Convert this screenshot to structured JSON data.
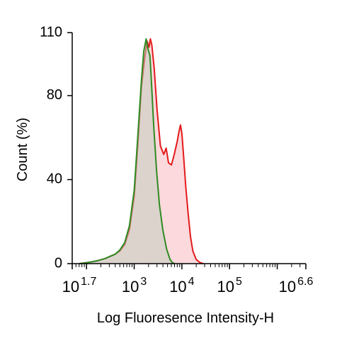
{
  "chart_data": {
    "type": "area",
    "title": "",
    "xlabel": "Log Fluoresence Intensity-H",
    "ylabel": "Count  (%)",
    "xscale": "log",
    "xlim": [
      1.7,
      6.6
    ],
    "ylim": [
      0,
      110
    ],
    "yticks": [
      "0",
      "40",
      "80",
      "110"
    ],
    "ytick_values": [
      0,
      40,
      80,
      110
    ],
    "xticks": [
      {
        "base": "10",
        "exp": "1.7",
        "log": 1.7
      },
      {
        "base": "10",
        "exp": "3",
        "log": 3
      },
      {
        "base": "10",
        "exp": "4",
        "log": 4
      },
      {
        "base": "10",
        "exp": "5",
        "log": 5
      },
      {
        "base": "10",
        "exp": "6.6",
        "log": 6.6
      }
    ],
    "grid": false,
    "legend": "none",
    "series": [
      {
        "color": "#e31a1c",
        "fill": "#fbd9dc",
        "x_log": [
          1.85,
          1.95,
          2.1,
          2.25,
          2.4,
          2.5,
          2.6,
          2.7,
          2.8,
          2.9,
          3.0,
          3.08,
          3.15,
          3.22,
          3.27,
          3.31,
          3.34,
          3.37,
          3.42,
          3.48,
          3.55,
          3.62,
          3.67,
          3.72,
          3.78,
          3.84,
          3.9,
          3.94,
          3.97,
          4.0,
          4.04,
          4.08,
          4.13,
          4.18,
          4.23,
          4.3,
          4.38,
          4.45
        ],
        "y": [
          0,
          0.3,
          0.8,
          1.5,
          2.5,
          3.5,
          4.5,
          6,
          9,
          16,
          32,
          58,
          84,
          98,
          106,
          103,
          107,
          104,
          93,
          73,
          56,
          52,
          55,
          48,
          47,
          52,
          58,
          63,
          66,
          62,
          50,
          37,
          24,
          13,
          6,
          2,
          0.5,
          0
        ]
      },
      {
        "color": "#2e8b22",
        "fill": "rgba(190,205,190,0.5)",
        "x_log": [
          1.85,
          1.95,
          2.1,
          2.25,
          2.4,
          2.5,
          2.6,
          2.7,
          2.8,
          2.9,
          3.0,
          3.08,
          3.15,
          3.2,
          3.25,
          3.29,
          3.33,
          3.36,
          3.41,
          3.47,
          3.53,
          3.6,
          3.68,
          3.75,
          3.8,
          3.85
        ],
        "y": [
          0,
          0.3,
          0.8,
          1.5,
          2.5,
          3.5,
          4.5,
          6.5,
          10,
          18,
          35,
          62,
          87,
          101,
          107,
          102,
          99,
          87,
          65,
          44,
          28,
          16,
          7,
          2,
          0.5,
          0
        ]
      }
    ]
  }
}
